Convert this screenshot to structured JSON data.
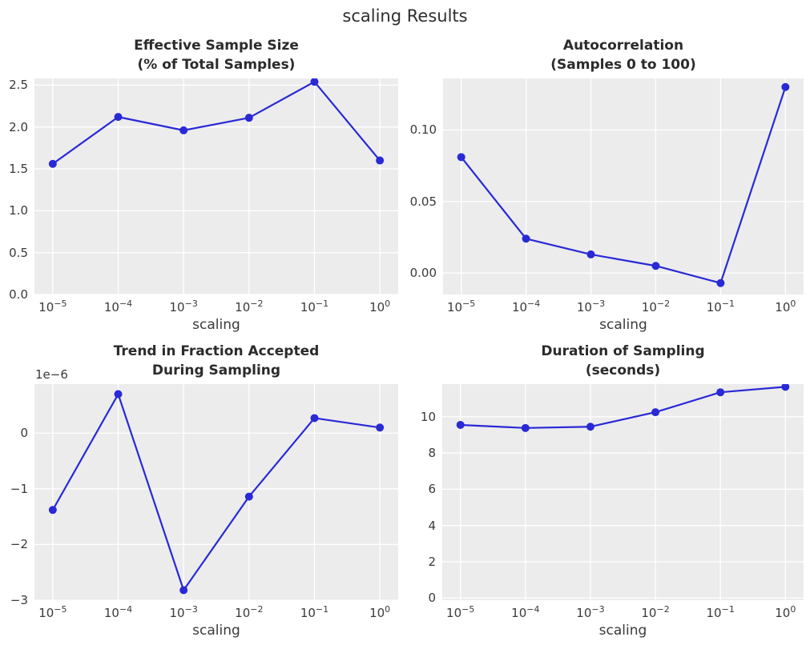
{
  "figure": {
    "title": "scaling Results",
    "background_color": "#ffffff",
    "axes_background_color": "#ececec",
    "grid_color": "#ffffff",
    "line_color": "#2929d6",
    "marker": "circle",
    "text_color": "#3a3a3a",
    "title_color": "#2b2b2b",
    "grid": "on",
    "legend": "none"
  },
  "chart_data": [
    {
      "id": "ess",
      "type": "line",
      "title": "Effective Sample Size\n(% of Total Samples)",
      "xlabel": "scaling",
      "x_scale": "log",
      "x_values": [
        1e-05,
        0.0001,
        0.001,
        0.01,
        0.1,
        1
      ],
      "x_exponents": [
        -5,
        -4,
        -3,
        -2,
        -1,
        0
      ],
      "x_tick_labels": [
        "10^−5",
        "10^−4",
        "10^−3",
        "10^−2",
        "10^−1",
        "10^0"
      ],
      "values": [
        1.56,
        2.12,
        1.96,
        2.11,
        2.54,
        1.6
      ],
      "ylim": [
        0,
        2.58
      ],
      "yticks": [
        0,
        0.5,
        1.0,
        1.5,
        2.0,
        2.5
      ],
      "ytick_labels": [
        "0.0",
        "0.5",
        "1.0",
        "1.5",
        "2.0",
        "2.5"
      ]
    },
    {
      "id": "autocorr",
      "type": "line",
      "title": "Autocorrelation\n(Samples 0 to 100)",
      "xlabel": "scaling",
      "x_scale": "log",
      "x_values": [
        1e-05,
        0.0001,
        0.001,
        0.01,
        0.1,
        1
      ],
      "x_exponents": [
        -5,
        -4,
        -3,
        -2,
        -1,
        0
      ],
      "x_tick_labels": [
        "10^−5",
        "10^−4",
        "10^−3",
        "10^−2",
        "10^−1",
        "10^0"
      ],
      "values": [
        0.081,
        0.024,
        0.013,
        0.005,
        -0.007,
        0.13
      ],
      "ylim": [
        -0.015,
        0.136
      ],
      "yticks": [
        0,
        0.05,
        0.1
      ],
      "ytick_labels": [
        "0.00",
        "0.05",
        "0.10"
      ]
    },
    {
      "id": "trend",
      "type": "line",
      "title": "Trend in Fraction Accepted\nDuring Sampling",
      "xlabel": "scaling",
      "x_scale": "log",
      "value_scale": "1e-6",
      "offset_text": "1e−6",
      "x_values": [
        1e-05,
        0.0001,
        0.001,
        0.01,
        0.1,
        1
      ],
      "x_exponents": [
        -5,
        -4,
        -3,
        -2,
        -1,
        0
      ],
      "x_tick_labels": [
        "10^−5",
        "10^−4",
        "10^−3",
        "10^−2",
        "10^−1",
        "10^0"
      ],
      "values": [
        -1.38,
        0.7,
        -2.82,
        -1.14,
        0.27,
        0.1
      ],
      "ylim": [
        -3.0,
        0.88
      ],
      "yticks": [
        -3,
        -2,
        -1,
        0
      ],
      "ytick_labels": [
        "−3",
        "−2",
        "−1",
        "0"
      ]
    },
    {
      "id": "duration",
      "type": "line",
      "title": "Duration of Sampling\n(seconds)",
      "xlabel": "scaling",
      "x_scale": "log",
      "x_values": [
        1e-05,
        0.0001,
        0.001,
        0.01,
        0.1,
        1
      ],
      "x_exponents": [
        -5,
        -4,
        -3,
        -2,
        -1,
        0
      ],
      "x_tick_labels": [
        "10^−5",
        "10^−4",
        "10^−3",
        "10^−2",
        "10^−1",
        "10^0"
      ],
      "values": [
        9.55,
        9.38,
        9.45,
        10.25,
        11.35,
        11.65
      ],
      "ylim": [
        -0.12,
        11.8
      ],
      "yticks": [
        0,
        2,
        4,
        6,
        8,
        10
      ],
      "ytick_labels": [
        "0",
        "2",
        "4",
        "6",
        "8",
        "10"
      ]
    }
  ]
}
